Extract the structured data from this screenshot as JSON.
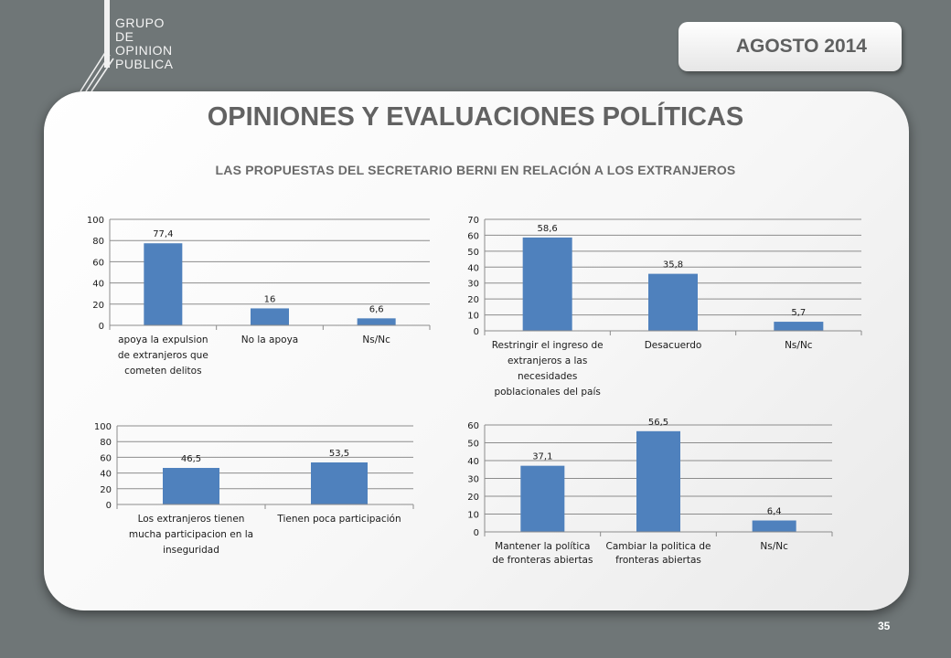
{
  "logo": {
    "lines": [
      "GRUPO",
      "DE",
      "OPINION",
      "PUBLICA"
    ]
  },
  "date_label": "AGOSTO 2014",
  "title": "OPINIONES Y EVALUACIONES POLÍTICAS",
  "subtitle": "LAS PROPUESTAS DEL SECRETARIO BERNI EN RELACIÓN A LOS EXTRANJEROS",
  "page_number": "35",
  "colors": {
    "bar": "#4f81bd",
    "background": "#6f7677",
    "grid": "#8c8c8c"
  },
  "chart_data": [
    {
      "type": "bar",
      "categories": [
        [
          "apoya la expulsion",
          "de extranjeros que",
          "cometen delitos"
        ],
        [
          "No la apoya"
        ],
        [
          "Ns/Nc"
        ]
      ],
      "values": [
        77.4,
        16,
        6.6
      ],
      "value_labels": [
        "77,4",
        "16",
        "6,6"
      ],
      "ylim": [
        0,
        100
      ],
      "yticks": [
        0,
        20,
        40,
        60,
        80,
        100
      ],
      "grid": true
    },
    {
      "type": "bar",
      "categories": [
        [
          "Restringir el ingreso de",
          "extranjeros a las",
          "necesidades",
          "poblacionales del país"
        ],
        [
          "Desacuerdo"
        ],
        [
          "Ns/Nc"
        ]
      ],
      "values": [
        58.6,
        35.8,
        5.7
      ],
      "value_labels": [
        "58,6",
        "35,8",
        "5,7"
      ],
      "ylim": [
        0,
        70
      ],
      "yticks": [
        0,
        10,
        20,
        30,
        40,
        50,
        60,
        70
      ],
      "grid": true
    },
    {
      "type": "bar",
      "categories": [
        [
          "Los extranjeros tienen",
          "mucha participacion en la",
          "inseguridad"
        ],
        [
          "Tienen poca participación"
        ]
      ],
      "values": [
        46.5,
        53.5
      ],
      "value_labels": [
        "46,5",
        "53,5"
      ],
      "ylim": [
        0,
        100
      ],
      "yticks": [
        0,
        20,
        40,
        60,
        80,
        100
      ],
      "grid": true
    },
    {
      "type": "bar",
      "categories": [
        [
          "Mantener la política",
          "de fronteras abiertas"
        ],
        [
          "Cambiar la politica de",
          "fronteras abiertas"
        ],
        [
          "Ns/Nc"
        ]
      ],
      "values": [
        37.1,
        56.5,
        6.4
      ],
      "value_labels": [
        "37,1",
        "56,5",
        "6,4"
      ],
      "ylim": [
        0,
        60
      ],
      "yticks": [
        0,
        10,
        20,
        30,
        40,
        50,
        60
      ],
      "grid": true
    }
  ]
}
